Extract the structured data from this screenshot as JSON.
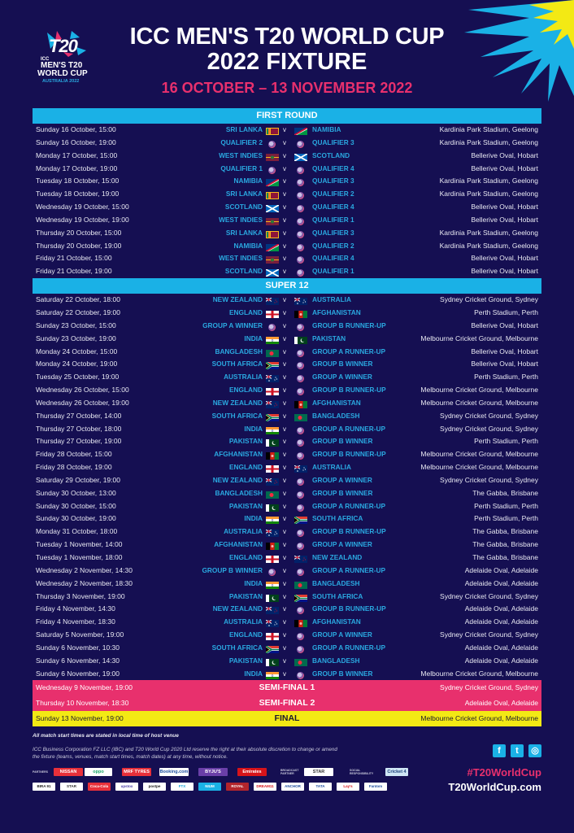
{
  "header": {
    "title_line1": "ICC MEN'S T20 WORLD CUP",
    "title_line2": "2022 FIXTURE",
    "dates": "16 OCTOBER – 13 NOVEMBER 2022"
  },
  "logo": {
    "mark": "T20",
    "icc": "ICC",
    "line1": "MEN'S T20",
    "line2": "WORLD CUP",
    "line3": "AUSTRALIA 2022"
  },
  "colors": {
    "background": "#150f52",
    "section_header": "#1ab1e6",
    "team_text": "#2aa8e0",
    "semi_final": "#e8306d",
    "final": "#f3e914",
    "accent_pink": "#e8306d"
  },
  "vs_label": "v",
  "sections": [
    {
      "title": "FIRST ROUND",
      "matches": [
        {
          "date": "Sunday 16 October, 15:00",
          "team1": "SRI LANKA",
          "flag1": "sri-lanka",
          "team2": "NAMIBIA",
          "flag2": "namibia",
          "venue": "Kardinia Park Stadium, Geelong"
        },
        {
          "date": "Sunday 16 October, 19:00",
          "team1": "QUALIFIER 2",
          "flag1": "tbd",
          "team2": "QUALIFIER 3",
          "flag2": "tbd",
          "venue": "Kardinia Park Stadium, Geelong"
        },
        {
          "date": "Monday 17 October, 15:00",
          "team1": "WEST INDIES",
          "flag1": "west-indies",
          "team2": "SCOTLAND",
          "flag2": "scotland",
          "venue": "Bellerive Oval, Hobart"
        },
        {
          "date": "Monday 17 October, 19:00",
          "team1": "QUALIFIER 1",
          "flag1": "tbd",
          "team2": "QUALIFIER 4",
          "flag2": "tbd",
          "venue": "Bellerive Oval, Hobart"
        },
        {
          "date": "Tuesday 18 October, 15:00",
          "team1": "NAMIBIA",
          "flag1": "namibia",
          "team2": "QUALIFIER 3",
          "flag2": "tbd",
          "venue": "Kardinia Park Stadium, Geelong"
        },
        {
          "date": "Tuesday 18 October, 19:00",
          "team1": "SRI LANKA",
          "flag1": "sri-lanka",
          "team2": "QUALIFIER 2",
          "flag2": "tbd",
          "venue": "Kardinia Park Stadium, Geelong"
        },
        {
          "date": "Wednesday 19 October, 15:00",
          "team1": "SCOTLAND",
          "flag1": "scotland",
          "team2": "QUALIFIER 4",
          "flag2": "tbd",
          "venue": "Bellerive Oval, Hobart"
        },
        {
          "date": "Wednesday 19 October, 19:00",
          "team1": "WEST INDIES",
          "flag1": "west-indies",
          "team2": "QUALIFIER 1",
          "flag2": "tbd",
          "venue": "Bellerive Oval, Hobart"
        },
        {
          "date": "Thursday 20 October, 15:00",
          "team1": "SRI LANKA",
          "flag1": "sri-lanka",
          "team2": "QUALIFIER 3",
          "flag2": "tbd",
          "venue": "Kardinia Park Stadium, Geelong"
        },
        {
          "date": "Thursday 20 October, 19:00",
          "team1": "NAMIBIA",
          "flag1": "namibia",
          "team2": "QUALIFIER 2",
          "flag2": "tbd",
          "venue": "Kardinia Park Stadium, Geelong"
        },
        {
          "date": "Friday 21 October, 15:00",
          "team1": "WEST INDIES",
          "flag1": "west-indies",
          "team2": "QUALIFIER 4",
          "flag2": "tbd",
          "venue": "Bellerive Oval, Hobart"
        },
        {
          "date": "Friday 21 October, 19:00",
          "team1": "SCOTLAND",
          "flag1": "scotland",
          "team2": "QUALIFIER 1",
          "flag2": "tbd",
          "venue": "Bellerive Oval, Hobart"
        }
      ]
    },
    {
      "title": "SUPER 12",
      "matches": [
        {
          "date": "Saturday 22 October, 18:00",
          "team1": "NEW ZEALAND",
          "flag1": "new-zealand",
          "team2": "AUSTRALIA",
          "flag2": "australia",
          "venue": "Sydney Cricket Ground, Sydney"
        },
        {
          "date": "Saturday 22 October, 19:00",
          "team1": "ENGLAND",
          "flag1": "england",
          "team2": "AFGHANISTAN",
          "flag2": "afghanistan",
          "venue": "Perth Stadium, Perth"
        },
        {
          "date": "Sunday 23 October, 15:00",
          "team1": "GROUP A WINNER",
          "flag1": "tbd",
          "team2": "GROUP B RUNNER-UP",
          "flag2": "tbd",
          "venue": "Bellerive Oval, Hobart"
        },
        {
          "date": "Sunday 23 October, 19:00",
          "team1": "INDIA",
          "flag1": "india",
          "team2": "PAKISTAN",
          "flag2": "pakistan",
          "venue": "Melbourne Cricket Ground, Melbourne"
        },
        {
          "date": "Monday 24 October, 15:00",
          "team1": "BANGLADESH",
          "flag1": "bangladesh",
          "team2": "GROUP A RUNNER-UP",
          "flag2": "tbd",
          "venue": "Bellerive Oval, Hobart"
        },
        {
          "date": "Monday 24 October, 19:00",
          "team1": "SOUTH AFRICA",
          "flag1": "south-africa",
          "team2": "GROUP B WINNER",
          "flag2": "tbd",
          "venue": "Bellerive Oval, Hobart"
        },
        {
          "date": "Tuesday 25 October, 19:00",
          "team1": "AUSTRALIA",
          "flag1": "australia",
          "team2": "GROUP A WINNER",
          "flag2": "tbd",
          "venue": "Perth Stadium, Perth"
        },
        {
          "date": "Wednesday 26 October, 15:00",
          "team1": "ENGLAND",
          "flag1": "england",
          "team2": "GROUP B RUNNER-UP",
          "flag2": "tbd",
          "venue": "Melbourne Cricket Ground, Melbourne"
        },
        {
          "date": "Wednesday 26 October, 19:00",
          "team1": "NEW ZEALAND",
          "flag1": "new-zealand",
          "team2": "AFGHANISTAN",
          "flag2": "afghanistan",
          "venue": "Melbourne Cricket Ground, Melbourne"
        },
        {
          "date": "Thursday 27 October, 14:00",
          "team1": "SOUTH AFRICA",
          "flag1": "south-africa",
          "team2": "BANGLADESH",
          "flag2": "bangladesh",
          "venue": "Sydney Cricket Ground, Sydney"
        },
        {
          "date": "Thursday 27 October, 18:00",
          "team1": "INDIA",
          "flag1": "india",
          "team2": "GROUP A RUNNER-UP",
          "flag2": "tbd",
          "venue": "Sydney Cricket Ground, Sydney"
        },
        {
          "date": "Thursday 27 October, 19:00",
          "team1": "PAKISTAN",
          "flag1": "pakistan",
          "team2": "GROUP B WINNER",
          "flag2": "tbd",
          "venue": "Perth Stadium, Perth"
        },
        {
          "date": "Friday 28 October, 15:00",
          "team1": "AFGHANISTAN",
          "flag1": "afghanistan",
          "team2": "GROUP B RUNNER-UP",
          "flag2": "tbd",
          "venue": "Melbourne Cricket Ground, Melbourne"
        },
        {
          "date": "Friday 28 October, 19:00",
          "team1": "ENGLAND",
          "flag1": "england",
          "team2": "AUSTRALIA",
          "flag2": "australia",
          "venue": "Melbourne Cricket Ground, Melbourne"
        },
        {
          "date": "Saturday 29 October, 19:00",
          "team1": "NEW ZEALAND",
          "flag1": "new-zealand",
          "team2": "GROUP A WINNER",
          "flag2": "tbd",
          "venue": "Sydney Cricket Ground, Sydney"
        },
        {
          "date": "Sunday 30 October, 13:00",
          "team1": "BANGLADESH",
          "flag1": "bangladesh",
          "team2": "GROUP B WINNER",
          "flag2": "tbd",
          "venue": "The Gabba, Brisbane"
        },
        {
          "date": "Sunday 30 October, 15:00",
          "team1": "PAKISTAN",
          "flag1": "pakistan",
          "team2": "GROUP A RUNNER-UP",
          "flag2": "tbd",
          "venue": "Perth Stadium, Perth"
        },
        {
          "date": "Sunday 30 October, 19:00",
          "team1": "INDIA",
          "flag1": "india",
          "team2": "SOUTH AFRICA",
          "flag2": "south-africa",
          "venue": "Perth Stadium, Perth"
        },
        {
          "date": "Monday 31 October, 18:00",
          "team1": "AUSTRALIA",
          "flag1": "australia",
          "team2": "GROUP B RUNNER-UP",
          "flag2": "tbd",
          "venue": "The Gabba, Brisbane"
        },
        {
          "date": "Tuesday 1 November, 14:00",
          "team1": "AFGHANISTAN",
          "flag1": "afghanistan",
          "team2": "GROUP A WINNER",
          "flag2": "tbd",
          "venue": "The Gabba, Brisbane"
        },
        {
          "date": "Tuesday 1 November, 18:00",
          "team1": "ENGLAND",
          "flag1": "england",
          "team2": "NEW ZEALAND",
          "flag2": "new-zealand",
          "venue": "The Gabba, Brisbane"
        },
        {
          "date": "Wednesday 2 November, 14:30",
          "team1": "GROUP B WINNER",
          "flag1": "tbd",
          "team2": "GROUP A RUNNER-UP",
          "flag2": "tbd",
          "venue": "Adelaide Oval, Adelaide"
        },
        {
          "date": "Wednesday 2 November, 18:30",
          "team1": "INDIA",
          "flag1": "india",
          "team2": "BANGLADESH",
          "flag2": "bangladesh",
          "venue": "Adelaide Oval, Adelaide"
        },
        {
          "date": "Thursday 3 November, 19:00",
          "team1": "PAKISTAN",
          "flag1": "pakistan",
          "team2": "SOUTH AFRICA",
          "flag2": "south-africa",
          "venue": "Sydney Cricket Ground, Sydney"
        },
        {
          "date": "Friday 4 November, 14:30",
          "team1": "NEW ZEALAND",
          "flag1": "new-zealand",
          "team2": "GROUP B RUNNER-UP",
          "flag2": "tbd",
          "venue": "Adelaide Oval, Adelaide"
        },
        {
          "date": "Friday 4 November, 18:30",
          "team1": "AUSTRALIA",
          "flag1": "australia",
          "team2": "AFGHANISTAN",
          "flag2": "afghanistan",
          "venue": "Adelaide Oval, Adelaide"
        },
        {
          "date": "Saturday 5 November, 19:00",
          "team1": "ENGLAND",
          "flag1": "england",
          "team2": "GROUP A WINNER",
          "flag2": "tbd",
          "venue": "Sydney Cricket Ground, Sydney"
        },
        {
          "date": "Sunday 6 November, 10:30",
          "team1": "SOUTH AFRICA",
          "flag1": "south-africa",
          "team2": "GROUP A RUNNER-UP",
          "flag2": "tbd",
          "venue": "Adelaide Oval, Adelaide"
        },
        {
          "date": "Sunday 6 November, 14:30",
          "team1": "PAKISTAN",
          "flag1": "pakistan",
          "team2": "BANGLADESH",
          "flag2": "bangladesh",
          "venue": "Adelaide Oval, Adelaide"
        },
        {
          "date": "Sunday 6 November, 19:00",
          "team1": "INDIA",
          "flag1": "india",
          "team2": "GROUP B WINNER",
          "flag2": "tbd",
          "venue": "Melbourne Cricket Ground, Melbourne"
        }
      ]
    }
  ],
  "knockouts": [
    {
      "date": "Wednesday 9 November, 19:00",
      "name": "SEMI-FINAL 1",
      "venue": "Sydney Cricket Ground, Sydney",
      "style": "semi"
    },
    {
      "date": "Thursday 10 November, 18:30",
      "name": "SEMI-FINAL 2",
      "venue": "Adelaide Oval, Adelaide",
      "style": "semi"
    },
    {
      "date": "Sunday 13 November, 19:00",
      "name": "FINAL",
      "venue": "Melbourne Cricket Ground, Melbourne",
      "style": "final"
    }
  ],
  "footer": {
    "note_times": "All match start times are stated in local time of host venue",
    "disclaimer": "ICC Business Corporation FZ LLC (IBC) and T20 World Cup 2020 Ltd reserve the right at their absolute discretion to change or amend the fixture (teams, venues, match start times, match dates) at any time, without notice.",
    "hashtag": "#T20WorldCup",
    "website": "T20WorldCup.com",
    "social": [
      {
        "name": "facebook-icon",
        "glyph": "f"
      },
      {
        "name": "twitter-icon",
        "glyph": "t"
      },
      {
        "name": "instagram-icon",
        "glyph": "◎"
      }
    ],
    "partners_label": "PARTNERS",
    "broadcast_label": "BROADCAST PARTNER",
    "social_resp_label": "SOCIAL RESPONSIBILITY",
    "partners_row1": [
      "NISSAN",
      "oppo",
      "MRF TYRES",
      "Booking.com",
      "BYJU'S",
      "Emirates"
    ],
    "broadcast": "STAR SPORTS",
    "social_resp": "Cricket 4 Good",
    "partners_row2": [
      "BIRA 91",
      "STAR SPORTS",
      "Coca-Cola",
      "upstox",
      "postpe",
      "FTX",
      "NIUM",
      "ROYAL STAG",
      "DREAM11",
      "ANCHOR",
      "TATA",
      "Lay's",
      "Fantom"
    ]
  }
}
